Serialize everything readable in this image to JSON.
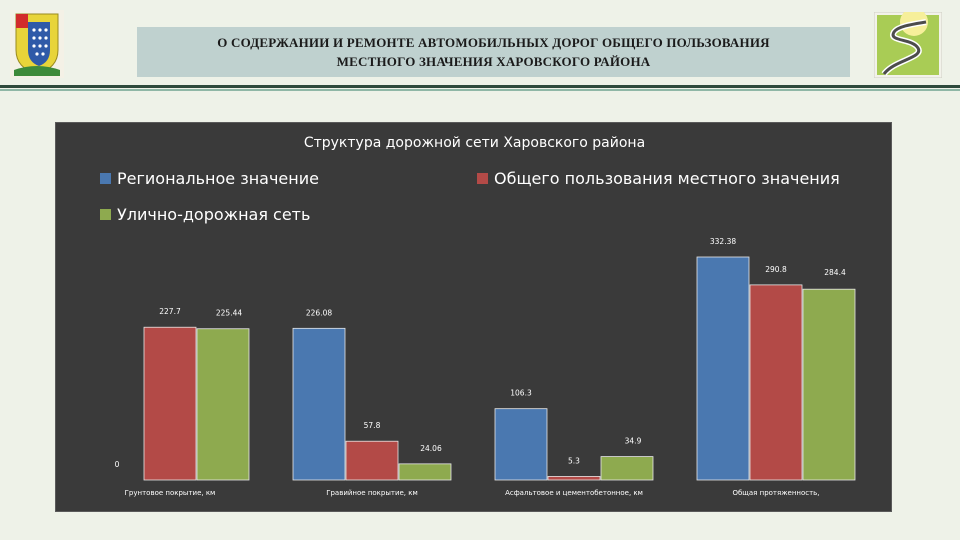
{
  "header": {
    "title_line1": "О СОДЕРЖАНИИ И РЕМОНТЕ АВТОМОБИЛЬНЫХ ДОРОГ ОБЩЕГО ПОЛЬЗОВАНИЯ",
    "title_line2": "МЕСТНОГО ЗНАЧЕНИЯ ХАРОВСКОГО РАЙОНА"
  },
  "colors": {
    "regional": "#4a78b0",
    "local": "#b34a47",
    "street": "#8eaa4f",
    "panel": "#3a3a3a",
    "title_box": "#bfd1cf"
  },
  "chart_data": {
    "type": "bar",
    "title": "Структура дорожной сети Харовского района",
    "categories": [
      "Грунтовое покрытие, км",
      "Гравийное покрытие, км",
      "Асфальтовое и цементобетонное, км",
      "Общая протяженность,"
    ],
    "series": [
      {
        "name": "Региональное значение",
        "values": [
          0,
          226.08,
          106.3,
          332.38
        ],
        "labels": [
          "0",
          "226.08",
          "106.3",
          "332.38"
        ]
      },
      {
        "name": "Общего пользования местного значения",
        "values": [
          227.7,
          57.8,
          5.3,
          290.8
        ],
        "labels": [
          "227.7",
          "57.8",
          "5.3",
          "290.8"
        ]
      },
      {
        "name": "Улично-дорожная сеть",
        "values": [
          225.44,
          24.06,
          34.9,
          284.4
        ],
        "labels": [
          "225.44",
          "24.06",
          "34.9",
          "284.4"
        ]
      }
    ],
    "ylim": [
      0,
      332.38
    ],
    "grid": false,
    "legend_position": "top"
  }
}
